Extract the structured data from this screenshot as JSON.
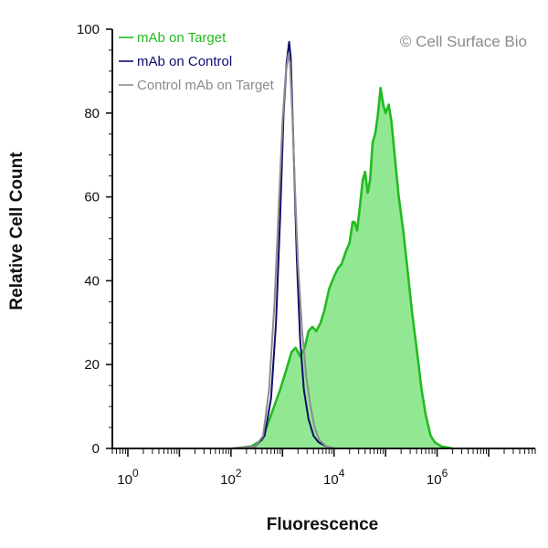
{
  "chart_data": {
    "type": "area",
    "xlabel": "Fluorescence",
    "ylabel": "Relative Cell Count",
    "x_scale": "log",
    "xlim": [
      0.5,
      80000000
    ],
    "ylim": [
      0,
      100
    ],
    "yticks": [
      0,
      20,
      40,
      60,
      80,
      100
    ],
    "xticks": [
      {
        "value": 1,
        "base": "10",
        "exp": "0"
      },
      {
        "value": 100,
        "base": "10",
        "exp": "2"
      },
      {
        "value": 10000,
        "base": "10",
        "exp": "4"
      },
      {
        "value": 1000000,
        "base": "10",
        "exp": "6"
      }
    ],
    "watermark": "© Cell Surface Bio",
    "legend_position": "top-left",
    "series": [
      {
        "name": "mAb on Target",
        "color": "#22bb22",
        "fill": "#92e892",
        "filled": true,
        "points": [
          [
            120,
            0
          ],
          [
            250,
            0.5
          ],
          [
            400,
            2
          ],
          [
            600,
            8
          ],
          [
            900,
            14
          ],
          [
            1200,
            19
          ],
          [
            1500,
            23
          ],
          [
            1800,
            24
          ],
          [
            2200,
            22
          ],
          [
            2700,
            24
          ],
          [
            3200,
            28
          ],
          [
            3800,
            29
          ],
          [
            4500,
            28
          ],
          [
            5500,
            30
          ],
          [
            6500,
            33
          ],
          [
            8000,
            38
          ],
          [
            10000,
            41
          ],
          [
            12000,
            43
          ],
          [
            14000,
            44
          ],
          [
            17000,
            47
          ],
          [
            20000,
            49
          ],
          [
            23000,
            54
          ],
          [
            25000,
            54
          ],
          [
            28000,
            52
          ],
          [
            32000,
            58
          ],
          [
            36000,
            64
          ],
          [
            40000,
            66
          ],
          [
            45000,
            61
          ],
          [
            50000,
            64
          ],
          [
            56000,
            73
          ],
          [
            63000,
            75
          ],
          [
            70000,
            79
          ],
          [
            80000,
            86
          ],
          [
            90000,
            82
          ],
          [
            100000,
            80
          ],
          [
            115000,
            82
          ],
          [
            130000,
            78
          ],
          [
            150000,
            70
          ],
          [
            180000,
            60
          ],
          [
            220000,
            52
          ],
          [
            270000,
            42
          ],
          [
            330000,
            32
          ],
          [
            400000,
            24
          ],
          [
            500000,
            14
          ],
          [
            600000,
            8
          ],
          [
            750000,
            3
          ],
          [
            900000,
            1.5
          ],
          [
            1200000,
            0.5
          ],
          [
            2000000,
            0
          ]
        ]
      },
      {
        "name": "mAb on Control",
        "color": "#0d0d6e",
        "filled": false,
        "points": [
          [
            100,
            0
          ],
          [
            300,
            0.5
          ],
          [
            450,
            3
          ],
          [
            600,
            12
          ],
          [
            750,
            30
          ],
          [
            900,
            55
          ],
          [
            1050,
            80
          ],
          [
            1200,
            92
          ],
          [
            1350,
            97
          ],
          [
            1450,
            93
          ],
          [
            1550,
            82
          ],
          [
            1700,
            65
          ],
          [
            1900,
            45
          ],
          [
            2200,
            26
          ],
          [
            2600,
            14
          ],
          [
            3200,
            7
          ],
          [
            4000,
            3
          ],
          [
            5000,
            1.5
          ],
          [
            7000,
            0.5
          ],
          [
            10000,
            0
          ]
        ]
      },
      {
        "name": "Control mAb on Target",
        "color": "#8c8c8c",
        "filled": false,
        "points": [
          [
            100,
            0
          ],
          [
            300,
            0.5
          ],
          [
            420,
            3
          ],
          [
            550,
            14
          ],
          [
            700,
            35
          ],
          [
            850,
            58
          ],
          [
            1000,
            78
          ],
          [
            1150,
            89
          ],
          [
            1300,
            94
          ],
          [
            1400,
            92
          ],
          [
            1550,
            80
          ],
          [
            1750,
            62
          ],
          [
            2000,
            44
          ],
          [
            2400,
            28
          ],
          [
            2900,
            17
          ],
          [
            3500,
            10
          ],
          [
            4200,
            5
          ],
          [
            5200,
            2
          ],
          [
            7000,
            0.5
          ],
          [
            10000,
            0
          ]
        ]
      }
    ]
  }
}
